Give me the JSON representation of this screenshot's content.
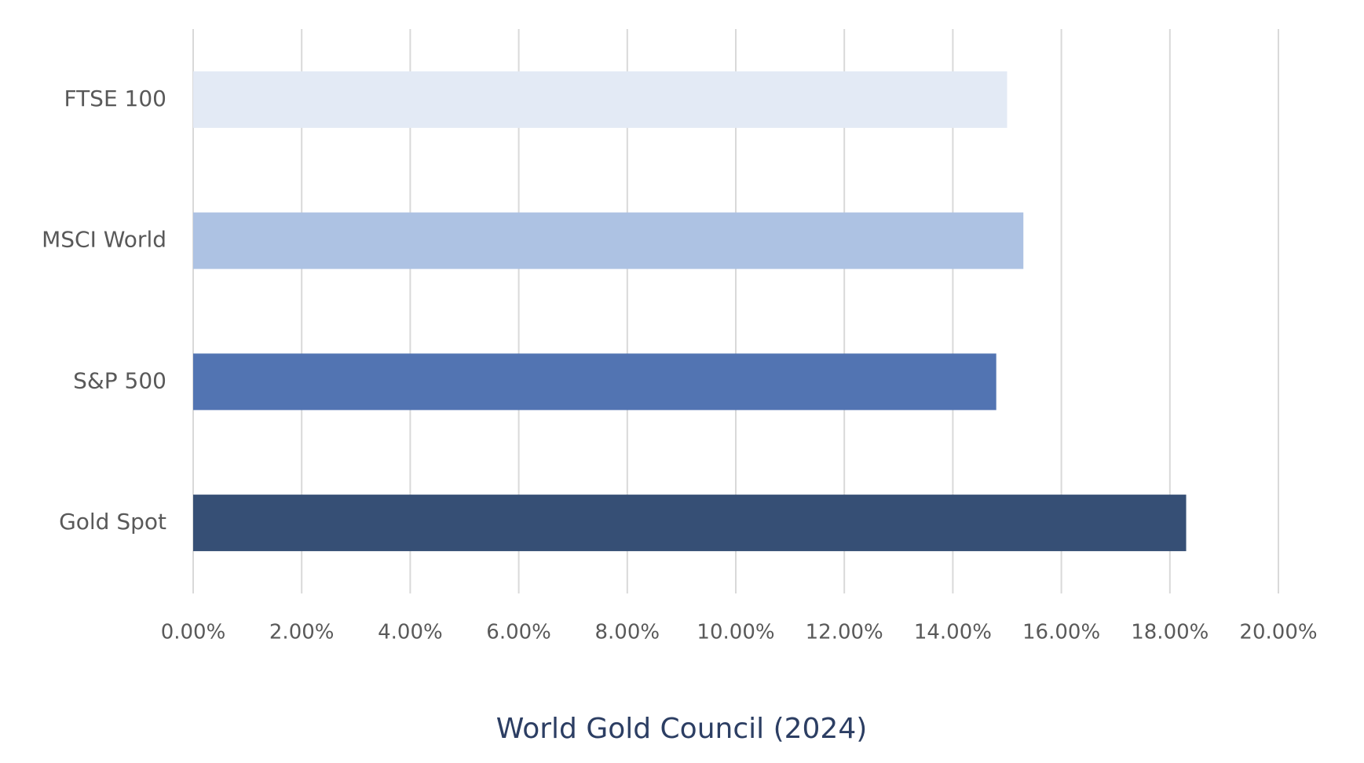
{
  "chart_data": {
    "type": "bar",
    "orientation": "horizontal",
    "categories": [
      "FTSE 100",
      "MSCI World",
      "S&P 500",
      "Gold Spot"
    ],
    "values": [
      15.0,
      15.3,
      14.8,
      18.3
    ],
    "colors": [
      "#e3eaf5",
      "#adc2e3",
      "#5274b2",
      "#364f75"
    ],
    "xlim": [
      0,
      20
    ],
    "xticks": [
      {
        "value": 0,
        "label": "0.00%"
      },
      {
        "value": 2,
        "label": "2.00%"
      },
      {
        "value": 4,
        "label": "4.00%"
      },
      {
        "value": 6,
        "label": "6.00%"
      },
      {
        "value": 8,
        "label": "8.00%"
      },
      {
        "value": 10,
        "label": "10.00%"
      },
      {
        "value": 12,
        "label": "12.00%"
      },
      {
        "value": 14,
        "label": "14.00%"
      },
      {
        "value": 16,
        "label": "16.00%"
      },
      {
        "value": 18,
        "label": "18.00%"
      },
      {
        "value": 20,
        "label": "20.00%"
      }
    ],
    "grid": true,
    "xlabel": "World Gold Council (2024)"
  }
}
